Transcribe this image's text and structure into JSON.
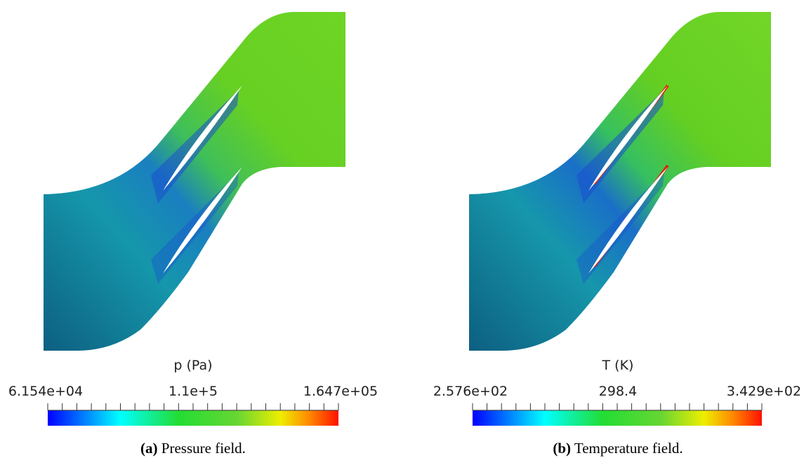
{
  "panels": [
    {
      "colorbar": {
        "title": "p (Pa)",
        "tick_labels": [
          "6.154e+04",
          "1.1e+5",
          "1.647e+05"
        ]
      },
      "caption": {
        "label": "(a)",
        "text": "Pressure field."
      }
    },
    {
      "colorbar": {
        "title": "T (K)",
        "tick_labels": [
          "2.576e+02",
          "298.4",
          "3.429e+02"
        ]
      },
      "caption": {
        "label": "(b)",
        "text": "Temperature field."
      }
    }
  ]
}
